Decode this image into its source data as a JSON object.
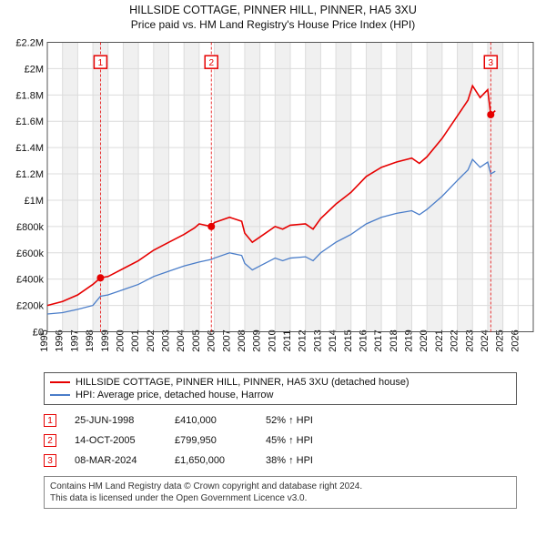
{
  "title": "HILLSIDE COTTAGE, PINNER HILL, PINNER, HA5 3XU",
  "subtitle": "Price paid vs. HM Land Registry's House Price Index (HPI)",
  "chart": {
    "type": "line",
    "background_color": "#ffffff",
    "grid_color": "#dcdcdc",
    "alt_band_color": "#f0f0f0",
    "xlim": [
      1995,
      2027
    ],
    "ylim": [
      0,
      2200000
    ],
    "y_ticks": [
      0,
      200000,
      400000,
      600000,
      800000,
      1000000,
      1200000,
      1400000,
      1600000,
      1800000,
      2000000,
      2200000
    ],
    "y_labels": [
      "£0",
      "£200k",
      "£400k",
      "£600k",
      "£800k",
      "£1M",
      "£1.2M",
      "£1.4M",
      "£1.6M",
      "£1.8M",
      "£2M",
      "£2.2M"
    ],
    "x_ticks": [
      1995,
      1996,
      1997,
      1998,
      1999,
      2000,
      2001,
      2002,
      2003,
      2004,
      2005,
      2006,
      2007,
      2008,
      2009,
      2010,
      2011,
      2012,
      2013,
      2014,
      2015,
      2016,
      2017,
      2018,
      2019,
      2020,
      2021,
      2022,
      2023,
      2024,
      2025,
      2026
    ],
    "x_labels": [
      "1995",
      "1996",
      "1997",
      "1998",
      "1999",
      "2000",
      "2001",
      "2002",
      "2003",
      "2004",
      "2005",
      "2006",
      "2007",
      "2008",
      "2009",
      "2010",
      "2011",
      "2012",
      "2013",
      "2014",
      "2015",
      "2016",
      "2017",
      "2018",
      "2019",
      "2020",
      "2021",
      "2022",
      "2023",
      "2024",
      "2025",
      "2026"
    ],
    "series": [
      {
        "name": "HILLSIDE COTTAGE, PINNER HILL, PINNER, HA5 3XU (detached house)",
        "color": "#e60000",
        "line_width": 1.6,
        "data": [
          [
            1995,
            200000
          ],
          [
            1996,
            230000
          ],
          [
            1997,
            280000
          ],
          [
            1998,
            360000
          ],
          [
            1998.5,
            410000
          ],
          [
            1999,
            420000
          ],
          [
            2000,
            480000
          ],
          [
            2001,
            540000
          ],
          [
            2002,
            620000
          ],
          [
            2003,
            680000
          ],
          [
            2004,
            740000
          ],
          [
            2004.7,
            790000
          ],
          [
            2005,
            820000
          ],
          [
            2005.8,
            799950
          ],
          [
            2006,
            830000
          ],
          [
            2007,
            870000
          ],
          [
            2007.8,
            840000
          ],
          [
            2008,
            750000
          ],
          [
            2008.5,
            680000
          ],
          [
            2009,
            720000
          ],
          [
            2010,
            800000
          ],
          [
            2010.5,
            780000
          ],
          [
            2011,
            810000
          ],
          [
            2012,
            820000
          ],
          [
            2012.5,
            780000
          ],
          [
            2013,
            860000
          ],
          [
            2014,
            970000
          ],
          [
            2015,
            1060000
          ],
          [
            2016,
            1180000
          ],
          [
            2017,
            1250000
          ],
          [
            2018,
            1290000
          ],
          [
            2019,
            1320000
          ],
          [
            2019.5,
            1280000
          ],
          [
            2020,
            1330000
          ],
          [
            2021,
            1470000
          ],
          [
            2022,
            1640000
          ],
          [
            2022.7,
            1760000
          ],
          [
            2023,
            1870000
          ],
          [
            2023.5,
            1780000
          ],
          [
            2024,
            1840000
          ],
          [
            2024.2,
            1650000
          ],
          [
            2024.5,
            1680000
          ]
        ]
      },
      {
        "name": "HPI: Average price, detached house, Harrow",
        "color": "#4a7dc9",
        "line_width": 1.3,
        "data": [
          [
            1995,
            135000
          ],
          [
            1996,
            145000
          ],
          [
            1997,
            170000
          ],
          [
            1998,
            200000
          ],
          [
            1998.5,
            270000
          ],
          [
            1999,
            280000
          ],
          [
            2000,
            320000
          ],
          [
            2001,
            360000
          ],
          [
            2002,
            420000
          ],
          [
            2003,
            460000
          ],
          [
            2004,
            500000
          ],
          [
            2005,
            530000
          ],
          [
            2005.8,
            550000
          ],
          [
            2006,
            560000
          ],
          [
            2007,
            600000
          ],
          [
            2007.8,
            580000
          ],
          [
            2008,
            520000
          ],
          [
            2008.5,
            470000
          ],
          [
            2009,
            500000
          ],
          [
            2010,
            560000
          ],
          [
            2010.5,
            540000
          ],
          [
            2011,
            560000
          ],
          [
            2012,
            570000
          ],
          [
            2012.5,
            540000
          ],
          [
            2013,
            600000
          ],
          [
            2014,
            680000
          ],
          [
            2015,
            740000
          ],
          [
            2016,
            820000
          ],
          [
            2017,
            870000
          ],
          [
            2018,
            900000
          ],
          [
            2019,
            920000
          ],
          [
            2019.5,
            890000
          ],
          [
            2020,
            930000
          ],
          [
            2021,
            1030000
          ],
          [
            2022,
            1150000
          ],
          [
            2022.7,
            1230000
          ],
          [
            2023,
            1310000
          ],
          [
            2023.5,
            1250000
          ],
          [
            2024,
            1290000
          ],
          [
            2024.2,
            1200000
          ],
          [
            2024.5,
            1220000
          ]
        ]
      }
    ],
    "sale_markers": [
      {
        "n": "1",
        "x": 1998.5,
        "y": 410000,
        "color": "#e60000",
        "box_y": 2050000
      },
      {
        "n": "2",
        "x": 2005.8,
        "y": 799950,
        "color": "#e60000",
        "box_y": 2050000
      },
      {
        "n": "3",
        "x": 2024.2,
        "y": 1650000,
        "color": "#e60000",
        "box_y": 2050000
      }
    ],
    "decade_band": [
      1998,
      2008
    ],
    "axis_fontsize": 11,
    "title_fontsize": 12.5
  },
  "legend": {
    "items": [
      {
        "label": "HILLSIDE COTTAGE, PINNER HILL, PINNER, HA5 3XU (detached house)",
        "color": "#e60000"
      },
      {
        "label": "HPI: Average price, detached house, Harrow",
        "color": "#4a7dc9"
      }
    ]
  },
  "sales": [
    {
      "n": "1",
      "date": "25-JUN-1998",
      "price": "£410,000",
      "diff": "52% ↑ HPI",
      "color": "#e60000"
    },
    {
      "n": "2",
      "date": "14-OCT-2005",
      "price": "£799,950",
      "diff": "45% ↑ HPI",
      "color": "#e60000"
    },
    {
      "n": "3",
      "date": "08-MAR-2024",
      "price": "£1,650,000",
      "diff": "38% ↑ HPI",
      "color": "#e60000"
    }
  ],
  "footnote": {
    "line1": "Contains HM Land Registry data © Crown copyright and database right 2024.",
    "line2": "This data is licensed under the Open Government Licence v3.0."
  }
}
